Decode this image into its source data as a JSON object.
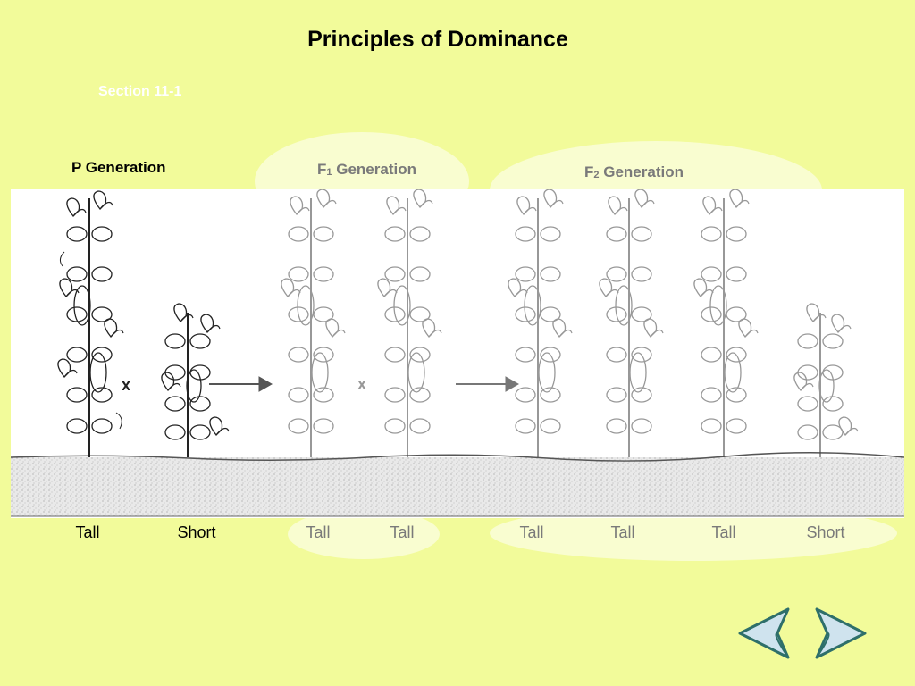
{
  "slide": {
    "title": "Principles of Dominance",
    "section": "Section 11-1"
  },
  "generations": {
    "p": {
      "label": "P Generation"
    },
    "f1": {
      "prefix": "F",
      "sub": "1",
      "suffix": " Generation"
    },
    "f2": {
      "prefix": "F",
      "sub": "2",
      "suffix": " Generation"
    }
  },
  "cross_symbols": [
    "x",
    "x"
  ],
  "plants": [
    {
      "label": "Tall",
      "generation": "P"
    },
    {
      "label": "Short",
      "generation": "P"
    },
    {
      "label": "Tall",
      "generation": "F1"
    },
    {
      "label": "Tall",
      "generation": "F1"
    },
    {
      "label": "Tall",
      "generation": "F2"
    },
    {
      "label": "Tall",
      "generation": "F2"
    },
    {
      "label": "Tall",
      "generation": "F2"
    },
    {
      "label": "Short",
      "generation": "F2"
    }
  ],
  "navigation": {
    "prev": "back-arrow-icon",
    "next": "forward-arrow-icon"
  },
  "colors": {
    "background": "#f2fb9a",
    "highlight": "#f9fdd0",
    "nav_fill": "#cfe3ee",
    "nav_stroke": "#2e6f6a"
  }
}
